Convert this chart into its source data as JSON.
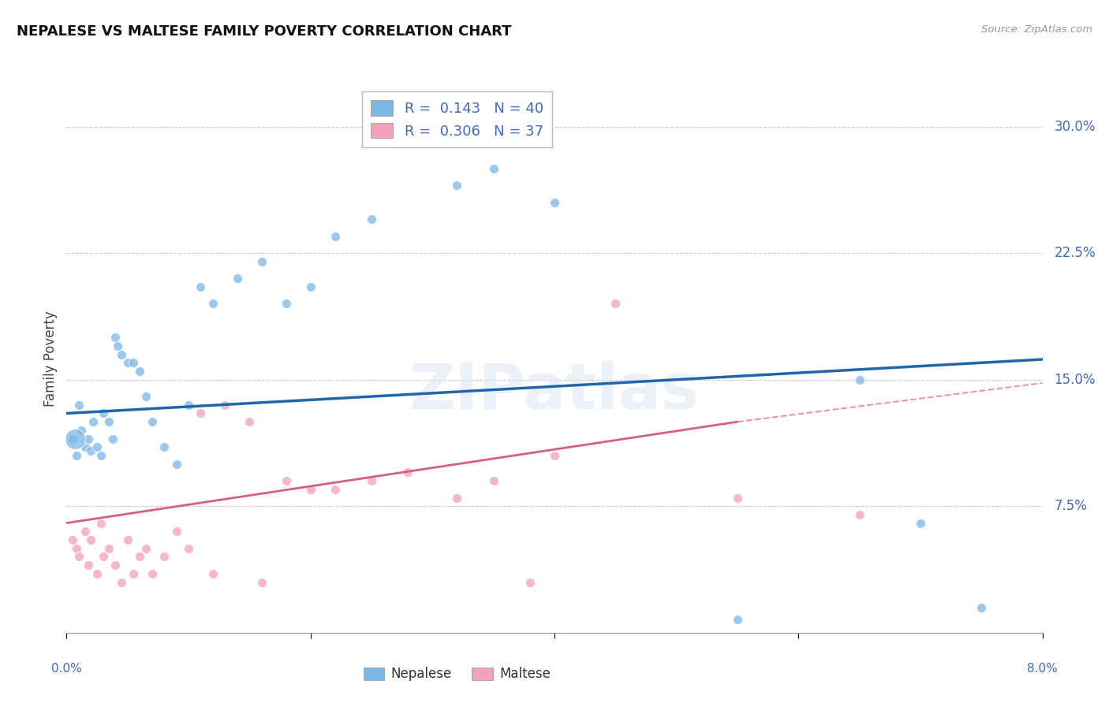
{
  "title": "NEPALESE VS MALTESE FAMILY POVERTY CORRELATION CHART",
  "source": "Source: ZipAtlas.com",
  "ylabel": "Family Poverty",
  "ytick_labels": [
    "7.5%",
    "15.0%",
    "22.5%",
    "30.0%"
  ],
  "ytick_vals": [
    7.5,
    15.0,
    22.5,
    30.0
  ],
  "xmin": 0.0,
  "xmax": 8.0,
  "ymin": 0.0,
  "ymax": 32.5,
  "nepalese_R": "0.143",
  "nepalese_N": "40",
  "maltese_R": "0.306",
  "maltese_N": "37",
  "nepalese_color": "#7ab8e8",
  "maltese_color": "#f4a0b8",
  "nepalese_line_color": "#2166ac",
  "maltese_line_color": "#d9607a",
  "nepalese_points": [
    [
      0.05,
      11.5
    ],
    [
      0.08,
      10.5
    ],
    [
      0.1,
      13.5
    ],
    [
      0.12,
      12.0
    ],
    [
      0.15,
      11.0
    ],
    [
      0.18,
      11.5
    ],
    [
      0.2,
      10.8
    ],
    [
      0.22,
      12.5
    ],
    [
      0.25,
      11.0
    ],
    [
      0.28,
      10.5
    ],
    [
      0.3,
      13.0
    ],
    [
      0.35,
      12.5
    ],
    [
      0.38,
      11.5
    ],
    [
      0.4,
      17.5
    ],
    [
      0.42,
      17.0
    ],
    [
      0.45,
      16.5
    ],
    [
      0.5,
      16.0
    ],
    [
      0.55,
      16.0
    ],
    [
      0.6,
      15.5
    ],
    [
      0.65,
      14.0
    ],
    [
      0.7,
      12.5
    ],
    [
      0.8,
      11.0
    ],
    [
      0.9,
      10.0
    ],
    [
      1.0,
      13.5
    ],
    [
      1.1,
      20.5
    ],
    [
      1.2,
      19.5
    ],
    [
      1.4,
      21.0
    ],
    [
      1.6,
      22.0
    ],
    [
      1.8,
      19.5
    ],
    [
      2.0,
      20.5
    ],
    [
      2.2,
      23.5
    ],
    [
      2.5,
      24.5
    ],
    [
      2.8,
      29.0
    ],
    [
      3.2,
      26.5
    ],
    [
      3.5,
      27.5
    ],
    [
      4.0,
      25.5
    ],
    [
      5.5,
      0.8
    ],
    [
      6.5,
      15.0
    ],
    [
      7.0,
      6.5
    ],
    [
      7.5,
      1.5
    ]
  ],
  "nepalese_big_dot": [
    0.07,
    11.5,
    350
  ],
  "maltese_points": [
    [
      0.05,
      5.5
    ],
    [
      0.08,
      5.0
    ],
    [
      0.1,
      4.5
    ],
    [
      0.15,
      6.0
    ],
    [
      0.18,
      4.0
    ],
    [
      0.2,
      5.5
    ],
    [
      0.25,
      3.5
    ],
    [
      0.28,
      6.5
    ],
    [
      0.3,
      4.5
    ],
    [
      0.35,
      5.0
    ],
    [
      0.4,
      4.0
    ],
    [
      0.45,
      3.0
    ],
    [
      0.5,
      5.5
    ],
    [
      0.55,
      3.5
    ],
    [
      0.6,
      4.5
    ],
    [
      0.65,
      5.0
    ],
    [
      0.7,
      3.5
    ],
    [
      0.8,
      4.5
    ],
    [
      0.9,
      6.0
    ],
    [
      1.0,
      5.0
    ],
    [
      1.1,
      13.0
    ],
    [
      1.2,
      3.5
    ],
    [
      1.3,
      13.5
    ],
    [
      1.5,
      12.5
    ],
    [
      1.6,
      3.0
    ],
    [
      1.8,
      9.0
    ],
    [
      2.0,
      8.5
    ],
    [
      2.2,
      8.5
    ],
    [
      2.5,
      9.0
    ],
    [
      2.8,
      9.5
    ],
    [
      3.2,
      8.0
    ],
    [
      3.5,
      9.0
    ],
    [
      3.8,
      3.0
    ],
    [
      4.0,
      10.5
    ],
    [
      4.5,
      19.5
    ],
    [
      5.5,
      8.0
    ],
    [
      6.5,
      7.0
    ]
  ],
  "nepalese_trendline": [
    [
      0.0,
      13.0
    ],
    [
      8.0,
      16.2
    ]
  ],
  "maltese_trendline": [
    [
      0.0,
      6.5
    ],
    [
      5.5,
      12.5
    ]
  ],
  "maltese_trendline_dashed": [
    [
      5.5,
      12.5
    ],
    [
      8.0,
      14.8
    ]
  ]
}
